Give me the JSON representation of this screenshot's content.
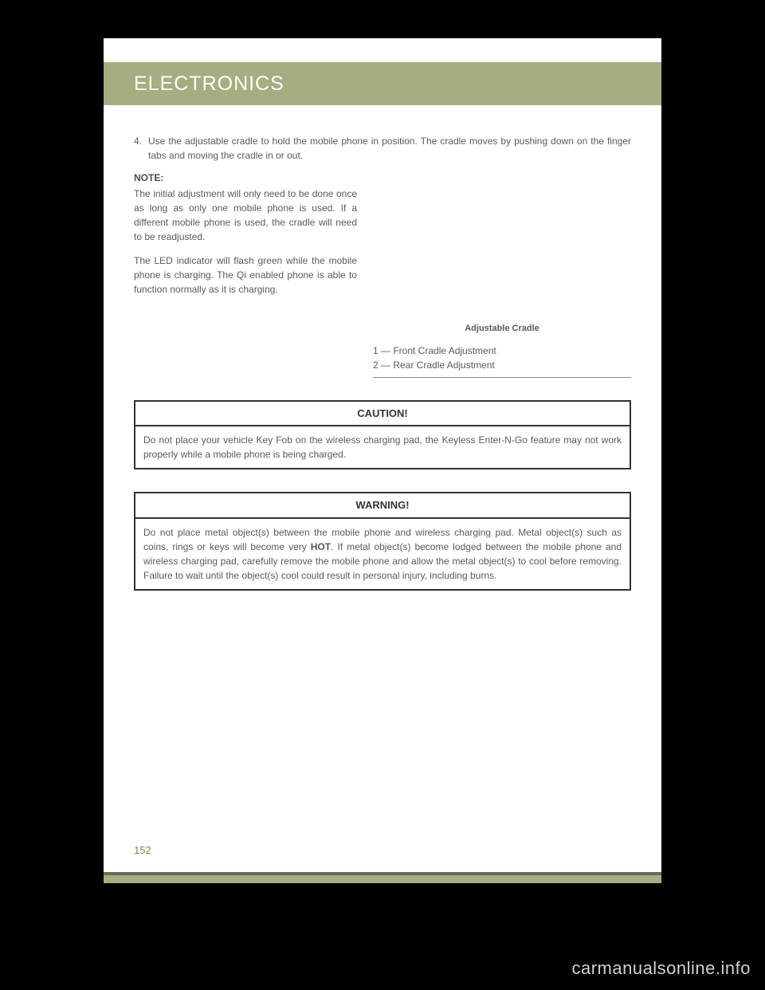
{
  "header": {
    "title": "ELECTRONICS"
  },
  "step": {
    "num": "4.",
    "text": "Use the adjustable cradle to hold the mobile phone in position. The cradle moves by pushing down on the finger tabs and moving the cradle in or out."
  },
  "note": {
    "label": "NOTE:",
    "text": "The initial adjustment will only need to be done once as long as only one mobile phone is used. If a different mobile phone is used, the cradle will need to be readjusted."
  },
  "para1": "The LED indicator will flash green while the mobile phone is charging. The Qi enabled phone is able to function normally as it is charging.",
  "figure": {
    "caption": "Adjustable Cradle",
    "legend1": "1 — Front Cradle Adjustment",
    "legend2": "2 — Rear Cradle Adjustment"
  },
  "caution": {
    "header": "CAUTION!",
    "body": "Do not place your vehicle Key Fob on the wireless charging pad, the Keyless Enter-N-Go feature may not work properly while a mobile phone is being charged."
  },
  "warning": {
    "header": "WARNING!",
    "body_pre": "Do not place metal object(s) between the mobile phone and wireless charging pad. Metal object(s) such as coins, rings or keys will become very ",
    "body_hot": "HOT",
    "body_post": ". If metal object(s) become lodged between the mobile phone and wireless charging pad, carefully remove the mobile phone and allow the metal object(s) to cool before removing. Failure to wait until the object(s) cool could result in personal injury, including burns."
  },
  "pageNumber": "152",
  "watermark": "carmanualsonline.info"
}
